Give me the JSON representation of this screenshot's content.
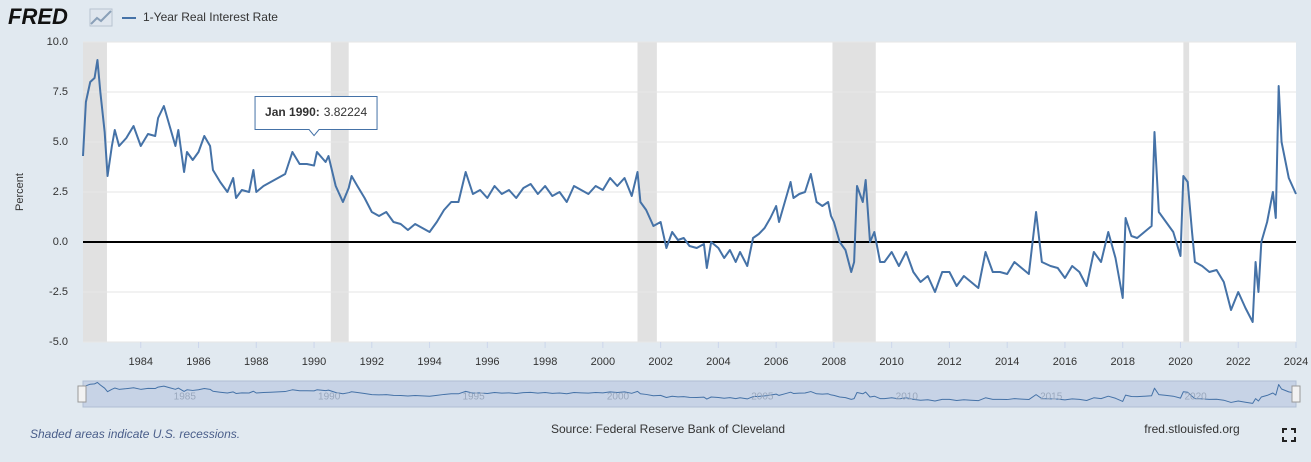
{
  "chart_data": {
    "type": "line",
    "logo": "FRED",
    "ylabel": "Percent",
    "series": [
      {
        "name": "1-Year Real Interest Rate",
        "color": "#4572a7",
        "x": [
          1982.0,
          1982.1,
          1982.25,
          1982.4,
          1982.5,
          1982.6,
          1982.75,
          1982.85,
          1983.0,
          1983.1,
          1983.25,
          1983.5,
          1983.75,
          1984.0,
          1984.25,
          1984.5,
          1984.6,
          1984.8,
          1985.0,
          1985.2,
          1985.3,
          1985.5,
          1985.6,
          1985.8,
          1986.0,
          1986.2,
          1986.4,
          1986.5,
          1986.75,
          1987.0,
          1987.2,
          1987.3,
          1987.5,
          1987.75,
          1987.9,
          1988.0,
          1988.25,
          1988.5,
          1988.75,
          1989.0,
          1989.25,
          1989.5,
          1989.75,
          1990.0,
          1990.1,
          1990.4,
          1990.5,
          1990.75,
          1991.0,
          1991.2,
          1991.3,
          1991.5,
          1991.75,
          1992.0,
          1992.25,
          1992.5,
          1992.75,
          1993.0,
          1993.25,
          1993.5,
          1993.75,
          1994.0,
          1994.25,
          1994.5,
          1994.75,
          1995.0,
          1995.25,
          1995.5,
          1995.75,
          1996.0,
          1996.25,
          1996.5,
          1996.75,
          1997.0,
          1997.25,
          1997.5,
          1997.75,
          1998.0,
          1998.25,
          1998.5,
          1998.75,
          1999.0,
          1999.25,
          1999.5,
          1999.75,
          2000.0,
          2000.25,
          2000.5,
          2000.75,
          2001.0,
          2001.2,
          2001.3,
          2001.5,
          2001.75,
          2002.0,
          2002.2,
          2002.4,
          2002.6,
          2002.8,
          2003.0,
          2003.25,
          2003.5,
          2003.6,
          2003.75,
          2004.0,
          2004.2,
          2004.4,
          2004.6,
          2004.75,
          2005.0,
          2005.2,
          2005.4,
          2005.6,
          2005.8,
          2006.0,
          2006.1,
          2006.3,
          2006.5,
          2006.6,
          2006.8,
          2007.0,
          2007.2,
          2007.4,
          2007.6,
          2007.8,
          2007.9,
          2008.0,
          2008.2,
          2008.4,
          2008.6,
          2008.7,
          2008.8,
          2009.0,
          2009.1,
          2009.25,
          2009.4,
          2009.6,
          2009.75,
          2010.0,
          2010.25,
          2010.5,
          2010.75,
          2011.0,
          2011.25,
          2011.5,
          2011.75,
          2012.0,
          2012.25,
          2012.5,
          2012.75,
          2013.0,
          2013.25,
          2013.5,
          2013.75,
          2014.0,
          2014.25,
          2014.5,
          2014.75,
          2015.0,
          2015.2,
          2015.5,
          2015.75,
          2016.0,
          2016.25,
          2016.5,
          2016.75,
          2017.0,
          2017.25,
          2017.5,
          2017.75,
          2018.0,
          2018.1,
          2018.3,
          2018.5,
          2018.75,
          2019.0,
          2019.1,
          2019.25,
          2019.5,
          2019.75,
          2020.0,
          2020.1,
          2020.25,
          2020.4,
          2020.5,
          2020.75,
          2021.0,
          2021.25,
          2021.5,
          2021.75,
          2022.0,
          2022.25,
          2022.5,
          2022.6,
          2022.7,
          2022.8,
          2023.0,
          2023.2,
          2023.3,
          2023.4,
          2023.5,
          2023.75,
          2024.0
        ],
        "values": [
          4.3,
          7.0,
          8.0,
          8.2,
          9.1,
          7.5,
          5.5,
          3.3,
          4.8,
          5.6,
          4.8,
          5.2,
          5.8,
          4.8,
          5.4,
          5.3,
          6.2,
          6.8,
          5.8,
          4.8,
          5.6,
          3.5,
          4.5,
          4.1,
          4.5,
          5.3,
          4.8,
          3.6,
          3.0,
          2.5,
          3.2,
          2.2,
          2.6,
          2.5,
          3.6,
          2.5,
          2.8,
          3.0,
          3.2,
          3.4,
          4.5,
          3.9,
          3.9,
          3.82224,
          4.5,
          4.0,
          4.3,
          2.8,
          2.0,
          2.7,
          3.3,
          2.8,
          2.2,
          1.5,
          1.3,
          1.5,
          1.0,
          0.9,
          0.6,
          0.9,
          0.7,
          0.5,
          1.0,
          1.6,
          2.0,
          2.0,
          3.5,
          2.4,
          2.6,
          2.2,
          2.8,
          2.4,
          2.6,
          2.2,
          2.7,
          2.9,
          2.4,
          2.8,
          2.3,
          2.5,
          2.0,
          2.8,
          2.6,
          2.4,
          2.8,
          2.6,
          3.2,
          2.8,
          3.2,
          2.3,
          3.5,
          2.0,
          1.6,
          0.8,
          1.0,
          -0.3,
          0.5,
          0.1,
          0.2,
          -0.2,
          -0.3,
          -0.1,
          -1.3,
          0.0,
          -0.3,
          -0.8,
          -0.4,
          -1.0,
          -0.5,
          -1.2,
          0.2,
          0.4,
          0.7,
          1.2,
          1.8,
          1.0,
          2.0,
          3.0,
          2.2,
          2.4,
          2.5,
          3.4,
          2.0,
          1.8,
          2.0,
          1.3,
          1.0,
          0.0,
          -0.4,
          -1.5,
          -1.0,
          2.8,
          2.0,
          3.1,
          0.0,
          0.5,
          -1.0,
          -1.0,
          -0.5,
          -1.2,
          -0.5,
          -1.5,
          -2.0,
          -1.7,
          -2.5,
          -1.5,
          -1.5,
          -2.2,
          -1.7,
          -2.0,
          -2.3,
          -0.5,
          -1.5,
          -1.5,
          -1.6,
          -1.0,
          -1.3,
          -1.6,
          1.5,
          -1.0,
          -1.2,
          -1.3,
          -1.8,
          -1.2,
          -1.5,
          -2.2,
          -0.5,
          -1.0,
          0.5,
          -0.8,
          -2.8,
          1.2,
          0.3,
          0.2,
          0.5,
          0.8,
          5.5,
          1.5,
          1.0,
          0.5,
          -0.7,
          3.3,
          3.0,
          0.5,
          -1.0,
          -1.2,
          -1.5,
          -1.4,
          -2.0,
          -3.4,
          -2.5,
          -3.3,
          -4.0,
          -1.0,
          -2.5,
          0.0,
          1.0,
          2.5,
          1.2,
          7.8,
          5.0,
          3.2,
          2.4
        ]
      }
    ],
    "xlim": [
      1982,
      2024
    ],
    "xticks": [
      1984,
      1986,
      1988,
      1990,
      1992,
      1994,
      1996,
      1998,
      2000,
      2002,
      2004,
      2006,
      2008,
      2010,
      2012,
      2014,
      2016,
      2018,
      2020,
      2022,
      2024
    ],
    "ylim": [
      -5,
      10
    ],
    "yticks": [
      {
        "value": -5,
        "label": "-5.0"
      },
      -2.5,
      {
        "value": 0,
        "label": "0.0"
      },
      2.5,
      {
        "value": 5,
        "label": "5.0"
      },
      7.5,
      {
        "value": 10,
        "label": "10.0"
      }
    ],
    "grid": true,
    "zero_line": true,
    "recessions": [
      [
        1982.0,
        1982.83
      ],
      [
        1990.58,
        1991.2
      ],
      [
        2001.2,
        2001.87
      ],
      [
        2007.95,
        2009.45
      ],
      [
        2020.1,
        2020.3
      ]
    ],
    "tooltip": {
      "label": "Jan 1990:",
      "x": 1990.0,
      "value": 3.82224
    },
    "navigator_ticks": [
      1985,
      1990,
      1995,
      2000,
      2005,
      2010,
      2015,
      2020
    ],
    "note": "Shaded areas indicate U.S. recessions.",
    "source": "Source: Federal Reserve Bank of Cleveland",
    "site": "fred.stlouisfed.org"
  }
}
